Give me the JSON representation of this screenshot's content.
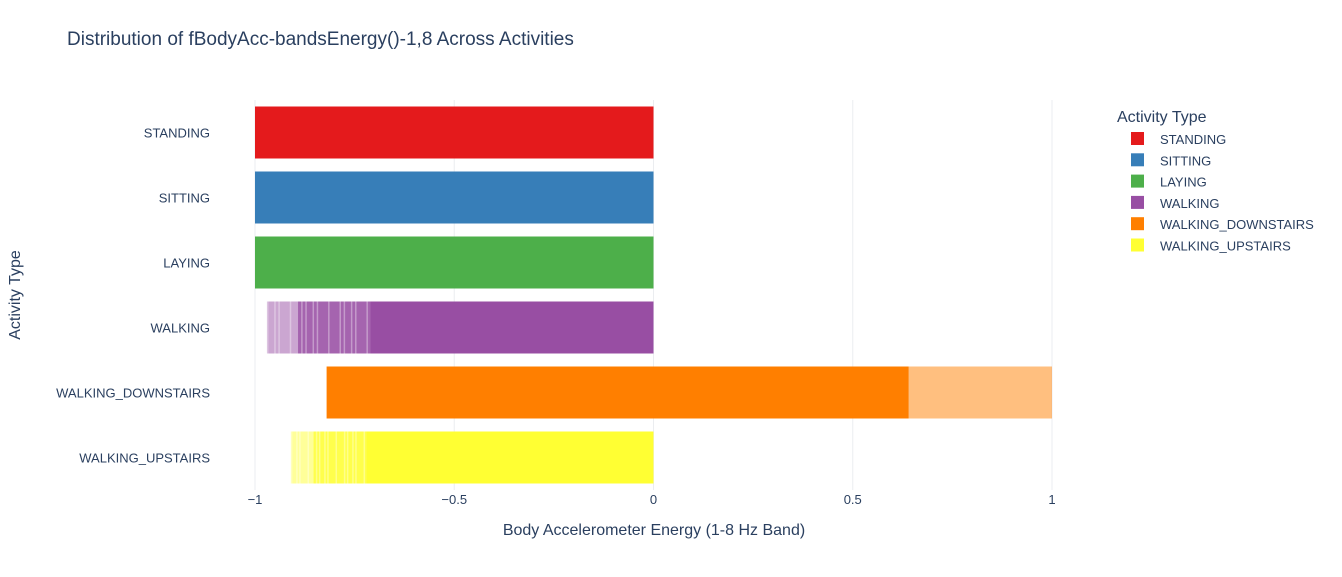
{
  "chart_data": {
    "type": "bar",
    "orientation": "horizontal",
    "title": "Distribution of fBodyAcc-bandsEnergy()-1,8 Across Activities",
    "xlabel": "Body Accelerometer Energy (1-8 Hz Band)",
    "ylabel": "Activity Type",
    "xlim": [
      -1,
      1
    ],
    "x_ticks": [
      -1,
      -0.5,
      0,
      0.5,
      1
    ],
    "x_tick_labels": [
      "−1",
      "−0.5",
      "0",
      "0.5",
      "1"
    ],
    "grid": true,
    "legend": {
      "title": "Activity Type",
      "placement": "top-right"
    },
    "categories": [
      "STANDING",
      "SITTING",
      "LAYING",
      "WALKING",
      "WALKING_DOWNSTAIRS",
      "WALKING_UPSTAIRS"
    ],
    "series": [
      {
        "name": "STANDING",
        "color": "#e41a1c",
        "min": -1.0,
        "max": 0.0,
        "solid_from": -1.0,
        "solid_to": 0.0
      },
      {
        "name": "SITTING",
        "color": "#377eb8",
        "min": -1.0,
        "max": 0.0,
        "solid_from": -1.0,
        "solid_to": 0.0
      },
      {
        "name": "LAYING",
        "color": "#4daf4a",
        "min": -1.0,
        "max": 0.0,
        "solid_from": -1.0,
        "solid_to": 0.0
      },
      {
        "name": "WALKING",
        "color": "#984ea3",
        "min": -0.97,
        "max": 0.0,
        "solid_from": -0.71,
        "solid_to": 0.0
      },
      {
        "name": "WALKING_DOWNSTAIRS",
        "color": "#ff7f00",
        "min": -0.82,
        "max": 1.0,
        "solid_from": -0.82,
        "solid_to": 0.64
      },
      {
        "name": "WALKING_UPSTAIRS",
        "color": "#ffff33",
        "min": -0.91,
        "max": 0.0,
        "solid_from": -0.72,
        "solid_to": 0.0
      }
    ]
  }
}
